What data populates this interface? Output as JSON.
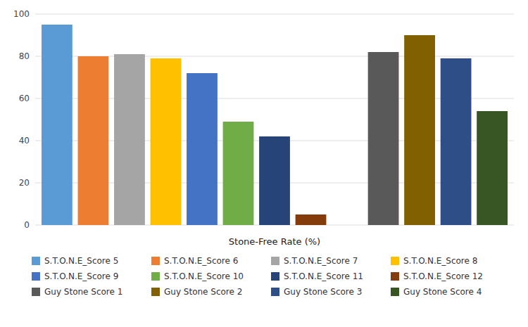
{
  "chart_data": {
    "type": "bar",
    "x_label": "Stone-Free Rate (%)",
    "categories": [
      "S.T.O.N.E_Score 5",
      "S.T.O.N.E_Score 6",
      "S.T.O.N.E_Score 7",
      "S.T.O.N.E_Score 8",
      "S.T.O.N.E_Score 9",
      "S.T.O.N.E_Score 10",
      "S.T.O.N.E_Score 11",
      "S.T.O.N.E_Score 12",
      "Guy Stone Score 1",
      "Guy Stone Score 2",
      "Guy Stone Score 3",
      "Guy Stone Score 4"
    ],
    "values": [
      95,
      80,
      81,
      79,
      72,
      49,
      42,
      5,
      82,
      90,
      79,
      54
    ],
    "colors": [
      "#5B9BD5",
      "#ED7D31",
      "#A5A5A5",
      "#FFC000",
      "#4472C4",
      "#70AD47",
      "#264478",
      "#843C0C",
      "#595959",
      "#806000",
      "#2E4E87",
      "#375623"
    ],
    "ylim": [
      0,
      100
    ],
    "yticks": [
      0,
      20,
      40,
      60,
      80,
      100
    ],
    "grid": true,
    "legend": "bottom",
    "tick_labels": "y"
  }
}
